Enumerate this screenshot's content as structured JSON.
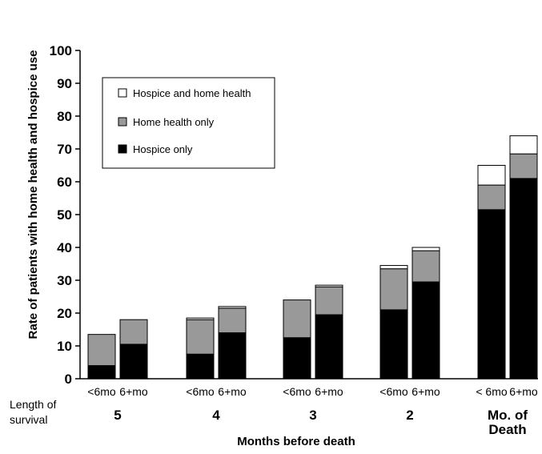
{
  "chart_data": {
    "type": "bar",
    "stacked": true,
    "ylabel": "Rate of patients with home health and hospice use",
    "xlabel": "Months before death",
    "ylim": [
      0,
      100
    ],
    "yticks": [
      0,
      10,
      20,
      30,
      40,
      50,
      60,
      70,
      80,
      90,
      100
    ],
    "side_label": [
      "Length of",
      "survival"
    ],
    "groups": [
      {
        "label": [
          "5"
        ],
        "bars": [
          "<6mo",
          "6+mo"
        ]
      },
      {
        "label": [
          "4"
        ],
        "bars": [
          "<6mo",
          "6+mo"
        ]
      },
      {
        "label": [
          "3"
        ],
        "bars": [
          "<6mo",
          "6+mo"
        ]
      },
      {
        "label": [
          "2"
        ],
        "bars": [
          "<6mo",
          "6+mo"
        ]
      },
      {
        "label": [
          "Mo. of",
          "Death"
        ],
        "bars": [
          "< 6mo",
          "6+mo"
        ]
      }
    ],
    "series": [
      {
        "name": "Hospice only",
        "color": "#000000",
        "values": [
          4,
          10.5,
          7.5,
          14,
          12.5,
          19.5,
          21,
          29.5,
          51.5,
          61
        ]
      },
      {
        "name": "Home health only",
        "color": "#999999",
        "values": [
          9.5,
          7.5,
          10.5,
          7.5,
          11.5,
          8.5,
          12.5,
          9.5,
          7.5,
          7.5
        ]
      },
      {
        "name": "Hospice and home health",
        "color": "#ffffff",
        "values": [
          0,
          0,
          0.5,
          0.5,
          0,
          0.5,
          1,
          1,
          6,
          5.5
        ]
      }
    ],
    "legend": {
      "position": "top-left",
      "order": [
        "Hospice and home health",
        "Home health only",
        "Hospice only"
      ]
    },
    "grid": false
  }
}
